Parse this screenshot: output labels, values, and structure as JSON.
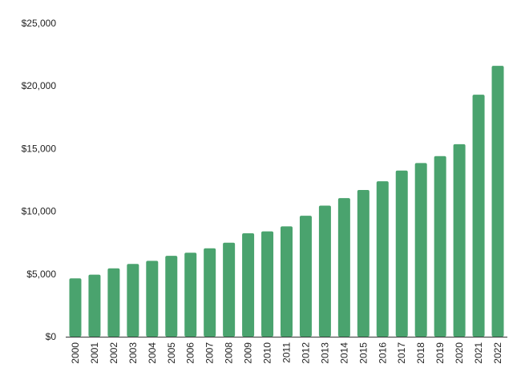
{
  "chart_data": {
    "type": "bar",
    "title": "",
    "xlabel": "",
    "ylabel": "",
    "categories": [
      "2000",
      "2001",
      "2002",
      "2003",
      "2004",
      "2005",
      "2006",
      "2007",
      "2008",
      "2009",
      "2010",
      "2011",
      "2012",
      "2013",
      "2014",
      "2015",
      "2016",
      "2017",
      "2018",
      "2019",
      "2020",
      "2021",
      "2022"
    ],
    "values": [
      4650,
      4950,
      5450,
      5800,
      6050,
      6450,
      6700,
      7050,
      7500,
      8250,
      8400,
      8800,
      9650,
      10450,
      11050,
      11700,
      12400,
      13250,
      13850,
      14400,
      15350,
      19300,
      21600
    ],
    "ylim": [
      0,
      25000
    ],
    "yticks": [
      0,
      5000,
      10000,
      15000,
      20000,
      25000
    ],
    "ytick_labels": [
      "$0",
      "$5,000",
      "$10,000",
      "$15,000",
      "$20,000",
      "$25,000"
    ],
    "grid": false,
    "legend": "none",
    "colors": {
      "bar": "#4aa36e",
      "axis": "#333333",
      "text": "#222222"
    }
  }
}
